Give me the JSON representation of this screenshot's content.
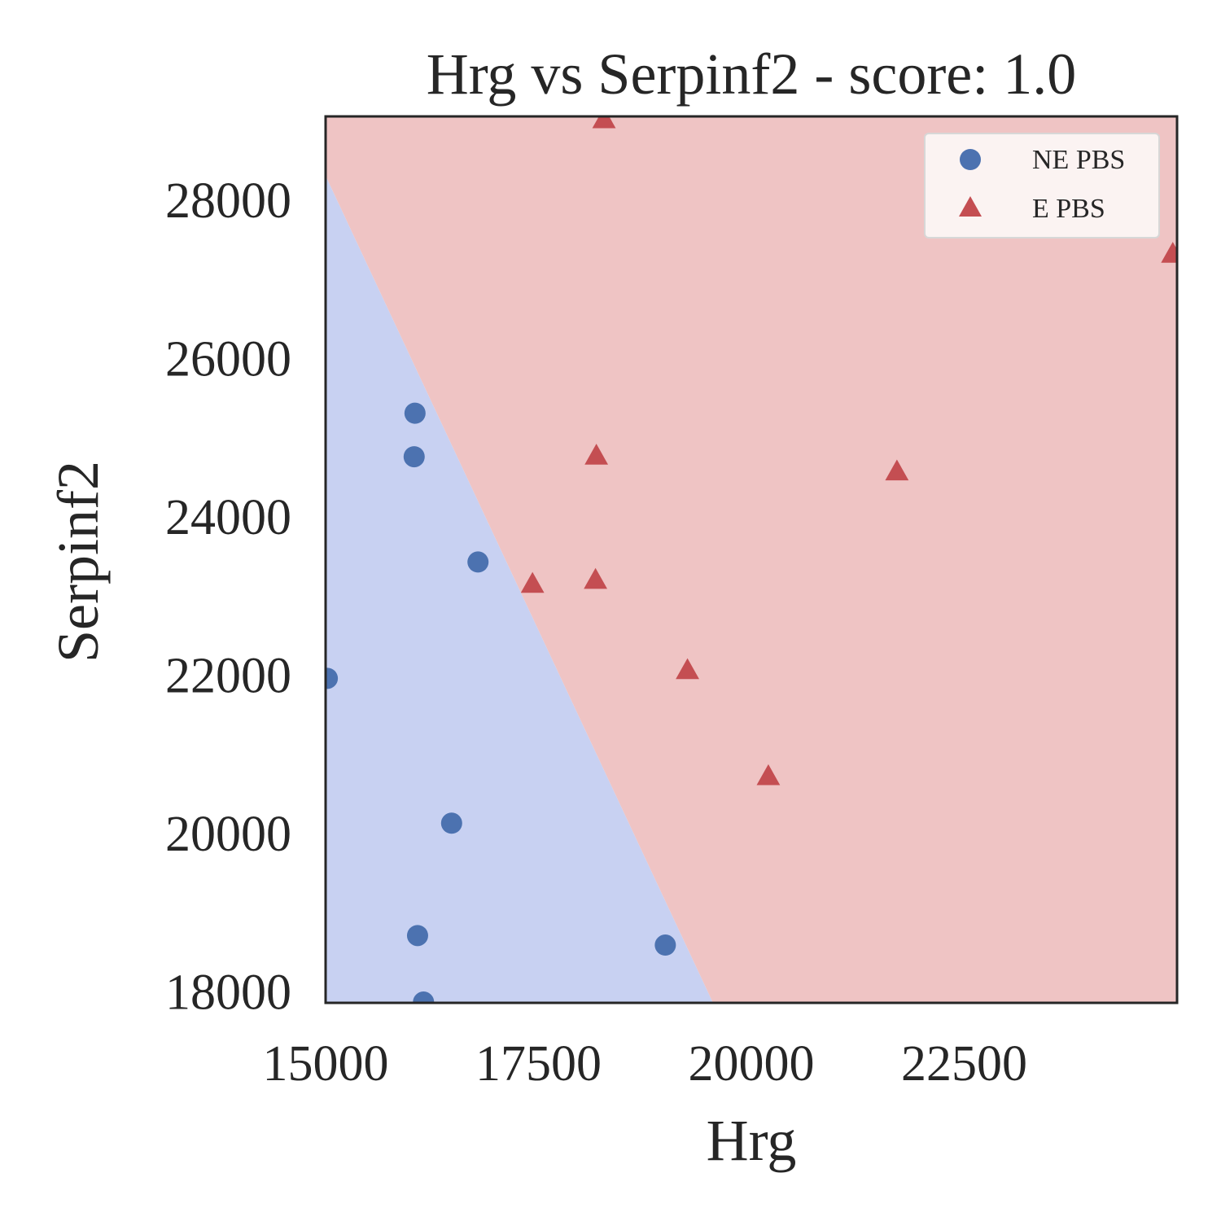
{
  "chart_data": {
    "type": "scatter",
    "title": "Hrg vs Serpinf2 - score: 1.0",
    "xlabel": "Hrg",
    "ylabel": "Serpinf2",
    "xlim": [
      15000,
      25000
    ],
    "ylim": [
      17850,
      29050
    ],
    "xticks": [
      15000,
      17500,
      20000,
      22500
    ],
    "yticks": [
      18000,
      20000,
      22000,
      24000,
      26000,
      28000
    ],
    "grid": false,
    "legend": {
      "placement": "top-right",
      "entries": [
        {
          "label": "NE PBS",
          "marker": "circle",
          "color": "#4c72b0"
        },
        {
          "label": "E PBS",
          "marker": "triangle",
          "color": "#c44e52"
        }
      ]
    },
    "decision_regions": {
      "boundary": [
        [
          15000,
          28300
        ],
        [
          19550,
          17850
        ]
      ],
      "left_color": "#c8d1f2",
      "right_color": "#efc4c4",
      "left_class": "NE PBS",
      "right_class": "E PBS"
    },
    "series": [
      {
        "name": "NE PBS",
        "marker": "circle",
        "color": "#4c72b0",
        "x": [
          16050,
          16040,
          16790,
          15020,
          16480,
          16080,
          18990,
          16150
        ],
        "y": [
          25300,
          24750,
          23420,
          21950,
          20120,
          18700,
          18580,
          17860
        ]
      },
      {
        "name": "E PBS",
        "marker": "triangle",
        "color": "#c44e52",
        "x": [
          18270,
          24950,
          18180,
          21710,
          17430,
          18170,
          19250,
          20200
        ],
        "y": [
          29000,
          27300,
          24750,
          24550,
          23130,
          23180,
          22040,
          20700
        ]
      }
    ]
  }
}
